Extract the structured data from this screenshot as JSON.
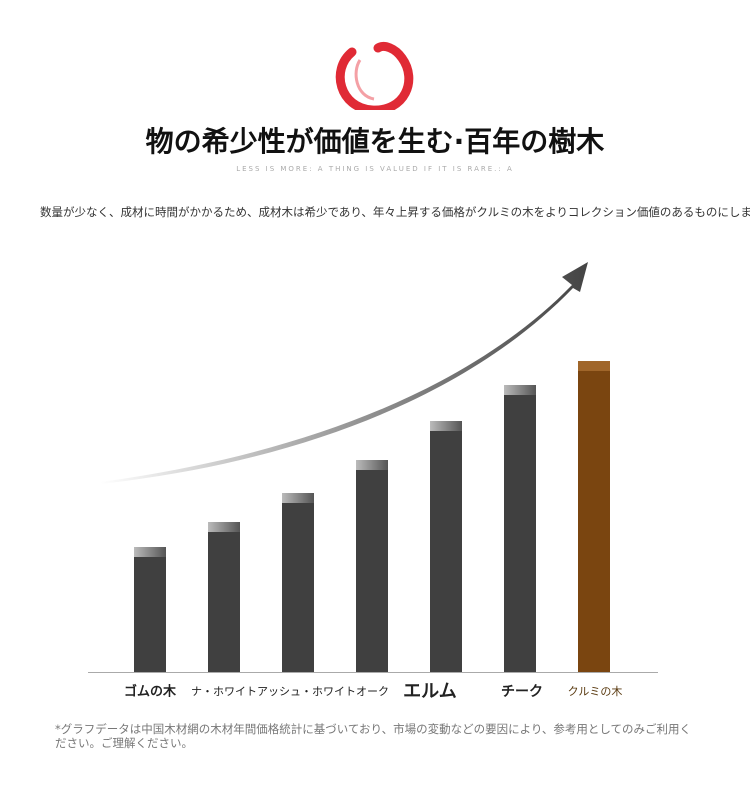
{
  "chart_data": {
    "type": "bar",
    "title": "物の希少性が価値を生む·百年の樹木",
    "subtitle": "LESS IS MORE: A THING IS VALUED IF IT IS RARE.: A",
    "description": "数量が少なく、成材に時間がかかるため、成材木は希少であり、年々上昇する価格がクルミの木をよりコレクション価値のあるものにします",
    "note": "*グラフデータは中国木材網の木材年間価格統計に基づいており、市場の変動などの要因により、参考用としてのみご利用ください。ご理解ください。",
    "categories": [
      "ゴムの木",
      null,
      "ナ・ホワイトアッシュ・ホワイトオーク",
      null,
      "エルム",
      "チーク",
      "クルミの木"
    ],
    "values": [
      123,
      148,
      177,
      210,
      249,
      285,
      309
    ],
    "colors": [
      "#404040",
      "#404040",
      "#404040",
      "#404040",
      "#404040",
      "#404040",
      "#7a4510"
    ],
    "ylim": [
      0,
      330
    ]
  }
}
